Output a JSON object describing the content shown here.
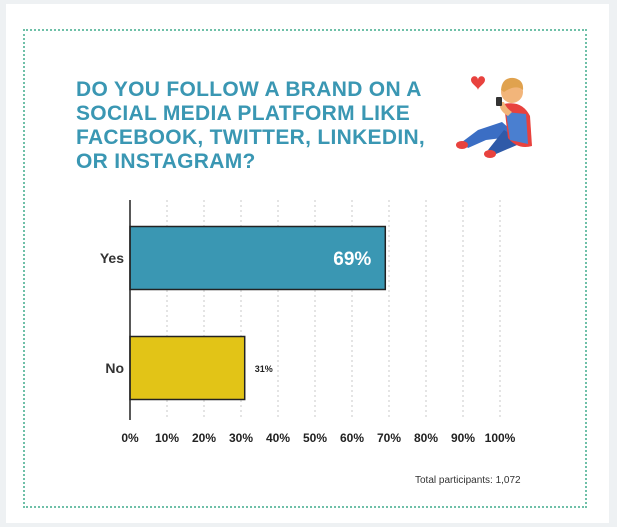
{
  "chart_data": {
    "type": "bar",
    "orientation": "horizontal",
    "title": "DO YOU FOLLOW A BRAND ON A SOCIAL MEDIA PLATFORM LIKE FACEBOOK, TWITTER, LINKEDIN, OR INSTAGRAM?",
    "categories": [
      "Yes",
      "No"
    ],
    "values": [
      69,
      31
    ],
    "value_labels": [
      "69%",
      "31%"
    ],
    "xlim": [
      0,
      100
    ],
    "x_ticks": [
      "0%",
      "10%",
      "20%",
      "30%",
      "40%",
      "50%",
      "60%",
      "70%",
      "80%",
      "90%",
      "100%"
    ],
    "colors": [
      "#3a97b3",
      "#e2c417"
    ],
    "grid": true,
    "legend": "none"
  },
  "footnote": "Total participants: 1,072",
  "illustration": "person-on-phone-with-heart-icon",
  "colors": {
    "title": "#3a97b3",
    "frame": "#6fc0a8"
  }
}
